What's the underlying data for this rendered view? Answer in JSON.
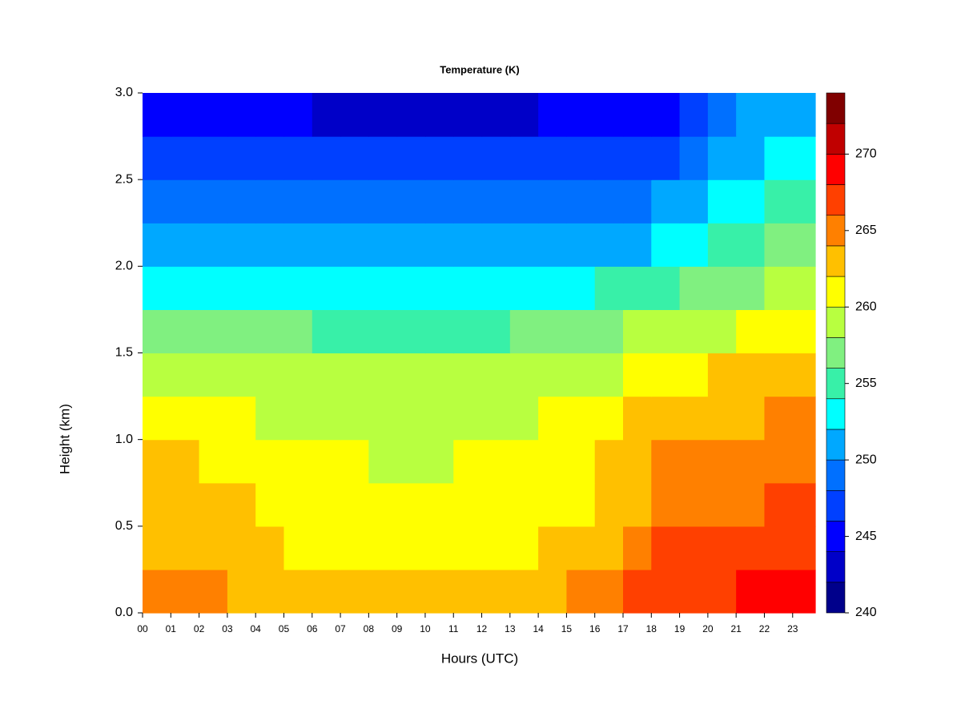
{
  "chart_data": {
    "type": "contour",
    "title": "Temperature (K)",
    "x_label": "Hours (UTC)",
    "y_label": "Height (km)",
    "x": [
      0,
      1,
      2,
      3,
      4,
      5,
      6,
      7,
      8,
      9,
      10,
      11,
      12,
      13,
      14,
      15,
      16,
      17,
      18,
      19,
      20,
      21,
      22,
      23
    ],
    "y": [
      0,
      0.25,
      0.5,
      0.75,
      1.0,
      1.25,
      1.5,
      1.75,
      2.0,
      2.25,
      2.5,
      2.75
    ],
    "z": [
      [
        264.5,
        264.5,
        264,
        263.5,
        263,
        262.5,
        262.5,
        262.5,
        262.5,
        262.5,
        262.5,
        262.5,
        262.5,
        263,
        263.5,
        264.5,
        265,
        266,
        267,
        267,
        267.5,
        268,
        268.5,
        268.5
      ],
      [
        263,
        263,
        263,
        263,
        262,
        261,
        261,
        261,
        261,
        261,
        261,
        261,
        261,
        261,
        262,
        262.5,
        263.5,
        264,
        266,
        266,
        266,
        266.5,
        267,
        267
      ],
      [
        263,
        262.5,
        262,
        262,
        261.5,
        261,
        261,
        261,
        261,
        261,
        261,
        261,
        261,
        261,
        261,
        261.5,
        262.5,
        263.5,
        265,
        265,
        265,
        265.5,
        266.5,
        266.5
      ],
      [
        262,
        262,
        261.5,
        261,
        261,
        260.5,
        260.5,
        260,
        259.5,
        259.5,
        259.5,
        260,
        260.5,
        261,
        261,
        261,
        262,
        263,
        264,
        264.5,
        264.5,
        265,
        265,
        265
      ],
      [
        261,
        260.5,
        260,
        260,
        259.5,
        259,
        259,
        259,
        258.5,
        258.5,
        258.5,
        259,
        259,
        259.5,
        260,
        260.5,
        261,
        262,
        262.5,
        263,
        263,
        263.5,
        264,
        264
      ],
      [
        259,
        259,
        258.5,
        258,
        258,
        258,
        258,
        258,
        258,
        258,
        258,
        258,
        258,
        258,
        258.5,
        259,
        259.5,
        260.5,
        261,
        261.5,
        262,
        262,
        262.5,
        262.5
      ],
      [
        257,
        256.5,
        256,
        256,
        256,
        256,
        255.5,
        255.5,
        255,
        255,
        255,
        255,
        255.5,
        256,
        256,
        256.5,
        257,
        258,
        258.5,
        259,
        259.5,
        260,
        260.5,
        260.5
      ],
      [
        253.5,
        253,
        253,
        253,
        253,
        253,
        252.5,
        252.5,
        252.5,
        252.5,
        252.5,
        252.5,
        253,
        253,
        253,
        253.5,
        254,
        254.5,
        255,
        256,
        257,
        257.5,
        258,
        258
      ],
      [
        251,
        251,
        250.5,
        250.5,
        250.5,
        250,
        250,
        250,
        250,
        250,
        250,
        250,
        250,
        250.5,
        250.5,
        251,
        251,
        251.5,
        252.5,
        253.5,
        254.5,
        255,
        256,
        256
      ],
      [
        249,
        249,
        248.5,
        248.5,
        248.5,
        248.5,
        248,
        248,
        248,
        248,
        248,
        248,
        248,
        248.5,
        248.5,
        249,
        249,
        249.5,
        250,
        251,
        252.5,
        253,
        254,
        254
      ],
      [
        247,
        247,
        246.5,
        246.5,
        246.5,
        246.5,
        246,
        246,
        246,
        246,
        246,
        246,
        246,
        246.5,
        246.5,
        246.5,
        247,
        247,
        247.5,
        249,
        250.5,
        251.5,
        252,
        252
      ],
      [
        244.5,
        244.5,
        244,
        244,
        244,
        244,
        243.5,
        243.5,
        243.5,
        243.5,
        243.5,
        243.5,
        243.5,
        243.5,
        244,
        244,
        244,
        244.5,
        245.5,
        247,
        249,
        250,
        250.5,
        250.5
      ]
    ],
    "xlim": [
      0,
      23.8
    ],
    "ylim": [
      0,
      3.0
    ],
    "xticks": [
      {
        "value": 0,
        "label": "00"
      },
      {
        "value": 1,
        "label": "01"
      },
      {
        "value": 2,
        "label": "02"
      },
      {
        "value": 3,
        "label": "03"
      },
      {
        "value": 4,
        "label": "04"
      },
      {
        "value": 5,
        "label": "05"
      },
      {
        "value": 6,
        "label": "06"
      },
      {
        "value": 7,
        "label": "07"
      },
      {
        "value": 8,
        "label": "08"
      },
      {
        "value": 9,
        "label": "09"
      },
      {
        "value": 10,
        "label": "10"
      },
      {
        "value": 11,
        "label": "11"
      },
      {
        "value": 12,
        "label": "12"
      },
      {
        "value": 13,
        "label": "13"
      },
      {
        "value": 14,
        "label": "14"
      },
      {
        "value": 15,
        "label": "15"
      },
      {
        "value": 16,
        "label": "16"
      },
      {
        "value": 17,
        "label": "17"
      },
      {
        "value": 18,
        "label": "18"
      },
      {
        "value": 19,
        "label": "19"
      },
      {
        "value": 20,
        "label": "20"
      },
      {
        "value": 21,
        "label": "21"
      },
      {
        "value": 22,
        "label": "22"
      },
      {
        "value": 23,
        "label": "23"
      }
    ],
    "yticks": [
      {
        "value": 0,
        "label": "0.0"
      },
      {
        "value": 0.5,
        "label": "0.5"
      },
      {
        "value": 1.0,
        "label": "1.0"
      },
      {
        "value": 1.5,
        "label": "1.5"
      },
      {
        "value": 2.0,
        "label": "2.0"
      },
      {
        "value": 2.5,
        "label": "2.5"
      },
      {
        "value": 3.0,
        "label": "3.0"
      }
    ],
    "levels": [
      240,
      242,
      244,
      246,
      248,
      250,
      252,
      254,
      256,
      258,
      260,
      262,
      264,
      266,
      268,
      270,
      272,
      274
    ],
    "colors": [
      "#00008b",
      "#0000c8",
      "#0000ff",
      "#0040ff",
      "#0070ff",
      "#00a8ff",
      "#00ffff",
      "#38f0a8",
      "#80f080",
      "#b8ff40",
      "#ffff00",
      "#ffc000",
      "#ff8000",
      "#ff4000",
      "#ff0000",
      "#c00000",
      "#800000"
    ],
    "colorbar_lim": [
      240,
      274
    ],
    "colorbar_ticks": [
      240,
      245,
      250,
      255,
      260,
      265,
      270
    ]
  }
}
